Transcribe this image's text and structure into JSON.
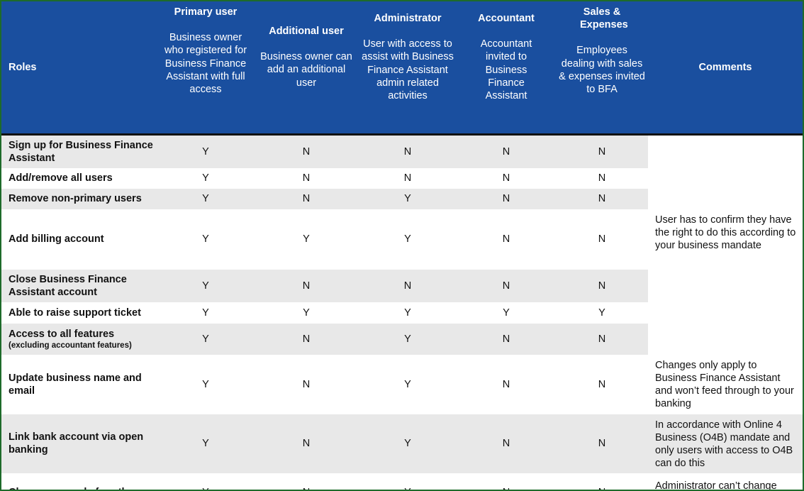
{
  "header": {
    "roles": "Roles",
    "comments": "Comments",
    "columns": [
      {
        "title": "Primary user",
        "desc": "Business owner who registered for Business Finance Assistant with full access"
      },
      {
        "title": "Additional user",
        "desc": "Business owner can add an additional user"
      },
      {
        "title": "Administrator",
        "desc": "User with access to assist with Business Finance Assistant admin related activities"
      },
      {
        "title": "Accountant",
        "desc": "Accountant invited to Business Finance Assistant"
      },
      {
        "title": "Sales & Expenses",
        "desc": "Employees dealing with sales & expenses invited to BFA"
      }
    ]
  },
  "rows": [
    {
      "role": "Sign up for Business Finance Assistant",
      "values": [
        "Y",
        "N",
        "N",
        "N",
        "N"
      ],
      "comment": ""
    },
    {
      "role": "Add/remove all users",
      "values": [
        "Y",
        "N",
        "N",
        "N",
        "N"
      ],
      "comment": ""
    },
    {
      "role": "Remove non-primary users",
      "values": [
        "Y",
        "N",
        "Y",
        "N",
        "N"
      ],
      "comment": ""
    },
    {
      "role": "Add billing account",
      "values": [
        "Y",
        "Y",
        "Y",
        "N",
        "N"
      ],
      "comment": "User has to confirm they have the right to do this according to your business mandate"
    },
    {
      "role": "Close Business Finance Assistant account",
      "values": [
        "Y",
        "N",
        "N",
        "N",
        "N"
      ],
      "comment": ""
    },
    {
      "role": "Able to raise support ticket",
      "values": [
        "Y",
        "Y",
        "Y",
        "Y",
        "Y"
      ],
      "comment": ""
    },
    {
      "role": "Access to all features",
      "role_note": "(excluding accountant features)",
      "values": [
        "Y",
        "N",
        "Y",
        "N",
        "N"
      ],
      "comment": ""
    },
    {
      "role": "Update business name and email",
      "values": [
        "Y",
        "N",
        "Y",
        "N",
        "N"
      ],
      "comment": "Changes only apply to Business Finance Assistant and won’t feed through to your banking"
    },
    {
      "role": "Link bank account via open banking",
      "values": [
        "Y",
        "N",
        "Y",
        "N",
        "N"
      ],
      "comment": "In accordance with Online 4 Business (O4B) mandate and only users with access to O4B can do this"
    },
    {
      "role": "Change user role for others",
      "values": [
        "Y",
        "N",
        "Y",
        "N",
        "N"
      ],
      "comment": "Administrator can’t change primary user"
    }
  ],
  "colors": {
    "header_bg": "#1a4f9f",
    "row_gray": "#e8e8e8",
    "border": "#1e6b2a"
  }
}
